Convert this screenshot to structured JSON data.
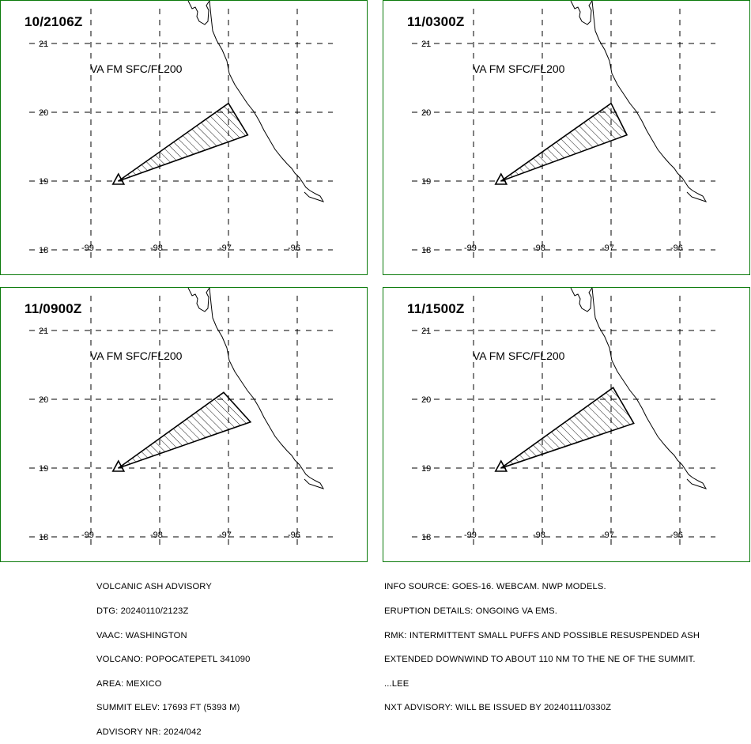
{
  "panels": [
    {
      "time": "10/2106Z",
      "label": "VA FM SFC/FL200",
      "polygon": [
        [
          -98.6,
          19.0
        ],
        [
          -97.0,
          20.13
        ],
        [
          -96.72,
          19.67
        ]
      ]
    },
    {
      "time": "11/0300Z",
      "label": "VA FM SFC/FL200",
      "polygon": [
        [
          -98.6,
          19.0
        ],
        [
          -97.0,
          20.13
        ],
        [
          -96.77,
          19.67
        ]
      ]
    },
    {
      "time": "11/0900Z",
      "label": "VA FM SFC/FL200",
      "polygon": [
        [
          -98.6,
          19.0
        ],
        [
          -97.07,
          20.1
        ],
        [
          -96.68,
          19.67
        ]
      ]
    },
    {
      "time": "11/1500Z",
      "label": "VA FM SFC/FL200",
      "polygon": [
        [
          -98.6,
          19.0
        ],
        [
          -96.97,
          20.17
        ],
        [
          -96.67,
          19.65
        ]
      ]
    }
  ],
  "axes": {
    "lon_ticks": [
      "-99",
      "-98",
      "-97",
      "-96"
    ],
    "lat_ticks": [
      "21",
      "20",
      "19",
      "18"
    ],
    "lon_values": [
      -99,
      -98,
      -97,
      -96
    ],
    "lat_values": [
      21,
      20,
      19,
      18
    ]
  },
  "volcano": {
    "lon": -98.6,
    "lat": 19.0
  },
  "colors": {
    "border": "#0a7a0a",
    "lines": "#000000"
  },
  "footer_left": [
    "VOLCANIC ASH ADVISORY",
    "DTG: 20240110/2123Z",
    "VAAC: WASHINGTON",
    "VOLCANO: POPOCATEPETL 341090",
    "AREA: MEXICO",
    "SUMMIT ELEV: 17693 FT (5393 M)",
    "ADVISORY NR: 2024/042"
  ],
  "footer_right": [
    "INFO SOURCE: GOES-16. WEBCAM. NWP MODELS.",
    "ERUPTION DETAILS: ONGOING VA EMS.",
    "RMK: INTERMITTENT SMALL PUFFS AND POSSIBLE RESUSPENDED ASH",
    "EXTENDED DOWNWIND TO ABOUT 110 NM TO THE NE OF THE SUMMIT.",
    "...LEE",
    "NXT ADVISORY: WILL BE ISSUED BY 20240111/0330Z"
  ]
}
